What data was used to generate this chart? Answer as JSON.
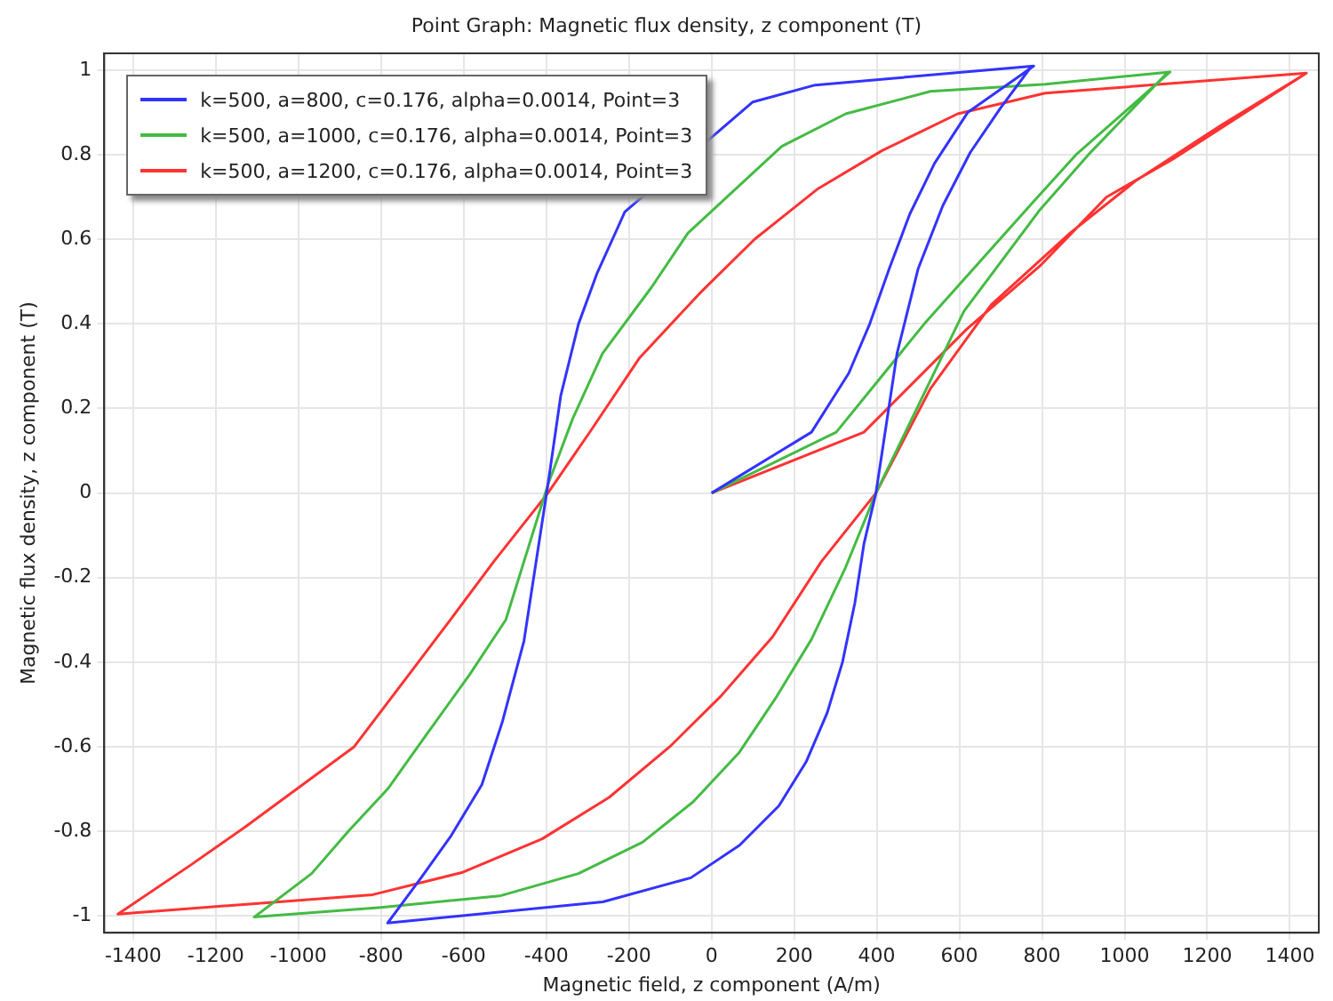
{
  "chart_data": {
    "type": "line",
    "title": "Point Graph: Magnetic flux density, z component (T)",
    "xlabel": "Magnetic field, z component (A/m)",
    "ylabel": "Magnetic flux density, z component (T)",
    "xlim": [
      -1470,
      1470
    ],
    "ylim": [
      -1.04,
      1.04
    ],
    "xticks": [
      -1400,
      -1200,
      -1000,
      -800,
      -600,
      -400,
      -200,
      0,
      200,
      400,
      600,
      800,
      1000,
      1200,
      1400
    ],
    "yticks": [
      -1,
      -0.8,
      -0.6,
      -0.4,
      -0.2,
      0,
      0.2,
      0.4,
      0.6,
      0.8,
      1
    ],
    "grid": true,
    "legend": "top left",
    "marker": "none",
    "line_style": "solid",
    "series": [
      {
        "name": "k=500, a=800, c=0.176, alpha=0.0014, Point=3",
        "color": "#3333ff",
        "x": [
          0,
          242,
          332,
          383,
          430,
          480,
          540,
          620,
          780,
          251,
          100,
          -210,
          -226,
          -277,
          -322,
          -365,
          -396,
          -454,
          -506,
          -556,
          -630,
          -703,
          -784,
          -263,
          -50,
          68,
          163,
          229,
          280,
          317,
          347,
          369,
          398,
          449,
          500,
          560,
          626,
          699,
          775
        ],
        "values": [
          0,
          0.144,
          0.283,
          0.4,
          0.53,
          0.66,
          0.78,
          0.9,
          1.01,
          0.965,
          0.925,
          0.665,
          0.63,
          0.52,
          0.4,
          0.23,
          0.02,
          -0.35,
          -0.54,
          -0.69,
          -0.81,
          -0.91,
          -1.017,
          -0.967,
          -0.91,
          -0.833,
          -0.74,
          -0.636,
          -0.52,
          -0.4,
          -0.26,
          -0.12,
          0,
          0.33,
          0.53,
          0.68,
          0.805,
          0.91,
          1.01
        ]
      },
      {
        "name": "k=500, a=1000, c=0.176, alpha=0.0014, Point=3",
        "color": "#44bb44",
        "x": [
          0,
          302,
          515,
          780,
          882,
          1110,
          808,
          530,
          325,
          170,
          -57,
          -145,
          -264,
          -336,
          -396,
          -498,
          -586,
          -689,
          -784,
          -879,
          -968,
          -1107,
          -800,
          -513,
          -322,
          -167,
          -44,
          66,
          154,
          242,
          324,
          398,
          611,
          795,
          912,
          1105
        ],
        "values": [
          0,
          0.144,
          0.4,
          0.69,
          0.8,
          0.996,
          0.967,
          0.95,
          0.897,
          0.82,
          0.615,
          0.487,
          0.33,
          0.176,
          0.02,
          -0.3,
          -0.43,
          -0.57,
          -0.7,
          -0.8,
          -0.9,
          -1.003,
          -0.98,
          -0.953,
          -0.9,
          -0.826,
          -0.73,
          -0.615,
          -0.487,
          -0.346,
          -0.177,
          0,
          0.43,
          0.67,
          0.8,
          0.996
        ]
      },
      {
        "name": "k=500, a=1200, c=0.176, alpha=0.0014, Point=3",
        "color": "#ff3333",
        "x": [
          0,
          369,
          618,
          795,
          956,
          1117,
          1440,
          808,
          596,
          413,
          258,
          104,
          -28,
          -174,
          -292,
          -396,
          -527,
          -630,
          -733,
          -865,
          -1004,
          -1129,
          -1261,
          -1437,
          -820,
          -602,
          -410,
          -248,
          -101,
          23,
          148,
          266,
          398,
          530,
          677,
          868,
          1029,
          1234,
          1435
        ],
        "values": [
          0,
          0.144,
          0.388,
          0.537,
          0.7,
          0.79,
          0.993,
          0.946,
          0.897,
          0.81,
          0.72,
          0.6,
          0.473,
          0.32,
          0.148,
          0,
          -0.162,
          -0.297,
          -0.43,
          -0.6,
          -0.7,
          -0.79,
          -0.88,
          -0.996,
          -0.95,
          -0.897,
          -0.818,
          -0.72,
          -0.6,
          -0.48,
          -0.34,
          -0.162,
          0,
          0.247,
          0.445,
          0.615,
          0.74,
          0.87,
          0.99
        ]
      }
    ]
  }
}
